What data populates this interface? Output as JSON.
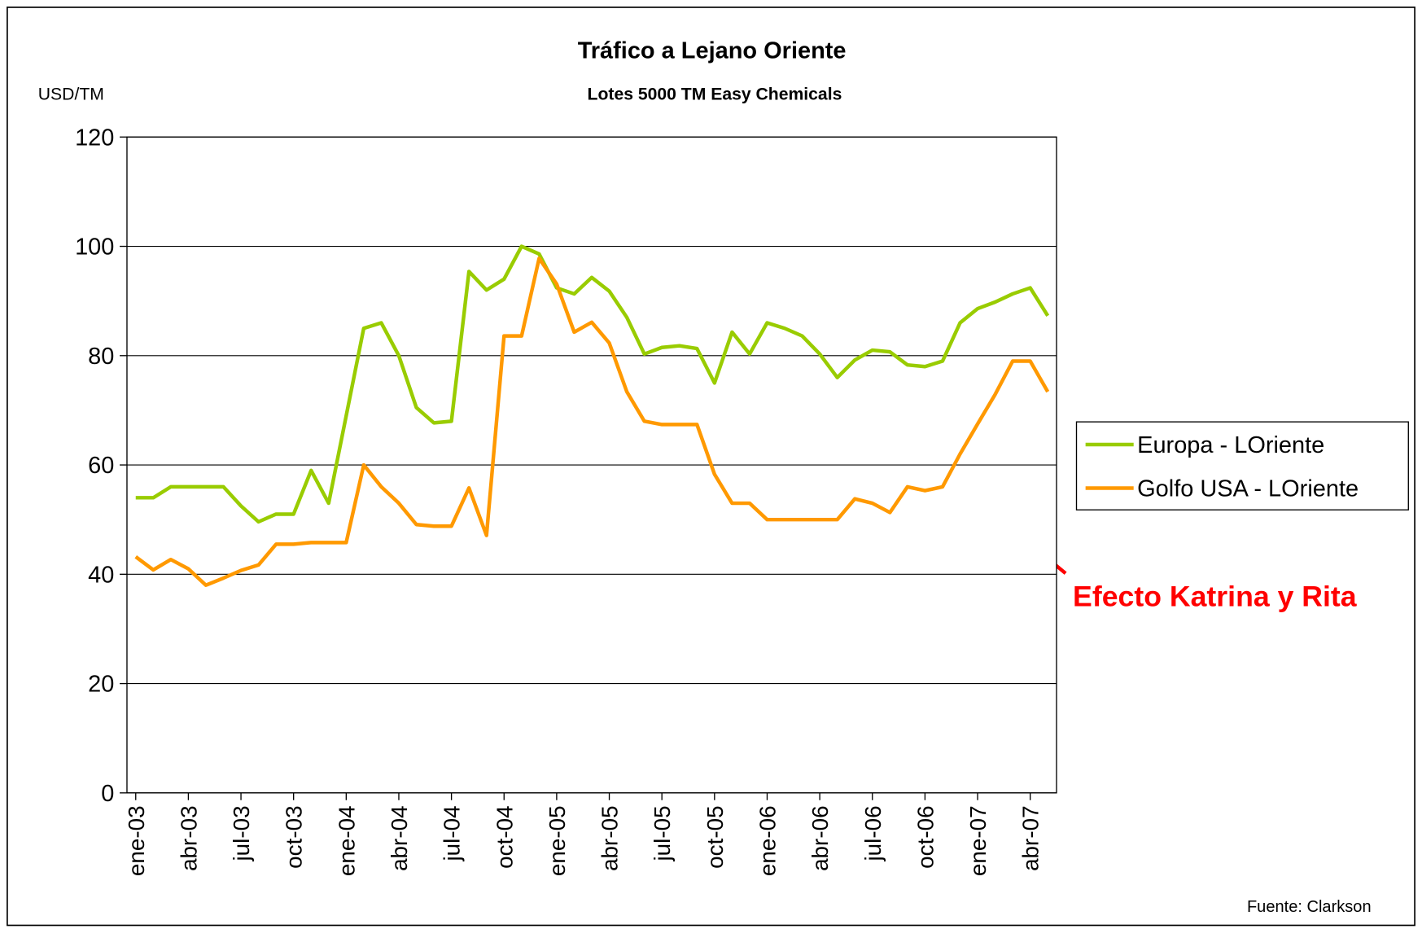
{
  "chart_data": {
    "type": "line",
    "title": "Tráfico a Lejano Oriente",
    "subtitle": "Lotes 5000 TM Easy Chemicals",
    "y_label": "USD/TM",
    "source": "Fuente: Clarkson",
    "annotation": "Efecto Katrina y Rita",
    "categories": [
      "ene-03",
      null,
      null,
      "abr-03",
      null,
      null,
      "jul-03",
      null,
      null,
      "oct-03",
      null,
      null,
      "ene-04",
      null,
      null,
      "abr-04",
      null,
      null,
      "jul-04",
      null,
      null,
      "oct-04",
      null,
      null,
      "ene-05",
      null,
      null,
      "abr-05",
      null,
      null,
      "jul-05",
      null,
      null,
      "oct-05",
      null,
      null,
      "ene-06",
      null,
      null,
      "abr-06",
      null,
      null,
      "jul-06",
      null,
      null,
      "oct-06",
      null,
      null,
      "ene-07",
      null,
      null,
      "abr-07",
      null
    ],
    "series": [
      {
        "name": "Europa - LOriente",
        "color": "#99cc00",
        "values": [
          54,
          54,
          56,
          56,
          56,
          56,
          52.5,
          49.6,
          51,
          51,
          59,
          53,
          69,
          85,
          86,
          80,
          70.5,
          67.7,
          68,
          95.4,
          92,
          94,
          100,
          98.6,
          92.4,
          91.3,
          94.3,
          91.8,
          87,
          80.3,
          81.5,
          81.8,
          81.3,
          75,
          84.3,
          80.3,
          86,
          85,
          83.6,
          80.3,
          76,
          79.2,
          81,
          80.7,
          78.3,
          78,
          79,
          86,
          88.6,
          89.8,
          91.3,
          92.4,
          87.3
        ]
      },
      {
        "name": "Golfo USA - LOriente",
        "color": "#ff9900",
        "values": [
          43.2,
          40.8,
          42.7,
          41,
          38,
          39.3,
          40.7,
          41.7,
          45.5,
          45.5,
          45.8,
          45.8,
          45.8,
          60,
          56,
          53,
          49.1,
          48.8,
          48.8,
          55.8,
          47.1,
          83.6,
          83.6,
          97.8,
          93.1,
          84.3,
          86.1,
          82.3,
          73.4,
          68,
          67.4,
          67.4,
          67.4,
          58.3,
          53,
          53,
          50,
          50,
          50,
          50,
          50,
          53.8,
          53,
          51.3,
          56,
          55.3,
          56,
          62,
          67.5,
          72.9,
          79,
          79,
          73.4
        ]
      }
    ],
    "ylim": [
      0,
      120
    ],
    "yticks": [
      0,
      20,
      40,
      60,
      80,
      100,
      120
    ],
    "grid": true,
    "legend": "right"
  }
}
